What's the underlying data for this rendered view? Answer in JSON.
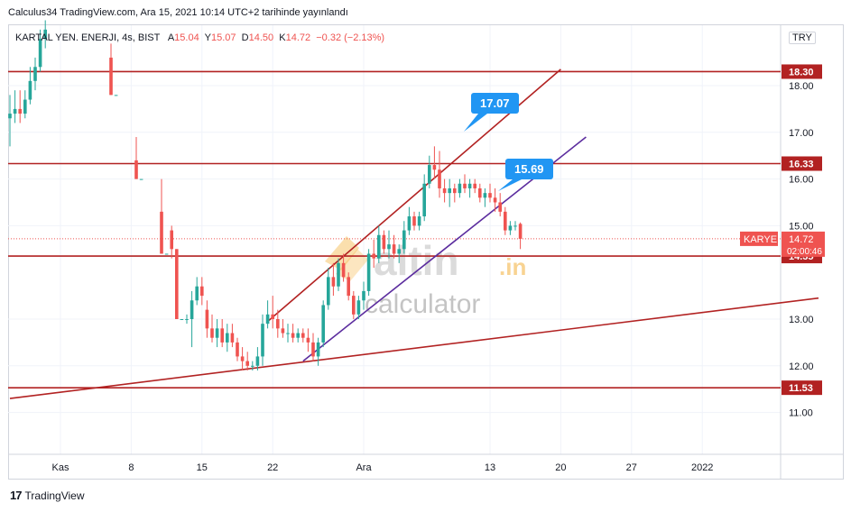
{
  "header": {
    "credit": "Calculus34 TradingView.com, Ara 15, 2021 10:14 UTC+2 tarihinde yayınlandı"
  },
  "legend": {
    "symbol": "KARTAL YEN. ENERJI, 4s, BIST",
    "open_k": "A",
    "open": "15.04",
    "high_k": "Y",
    "high": "15.07",
    "low_k": "D",
    "low": "14.50",
    "close_k": "K",
    "close": "14.72",
    "change": "−0.32 (−2.13%)"
  },
  "currency": "TRY",
  "watermark": {
    "brand_main": "altin",
    "brand_suffix": ".in",
    "brand_sub": "calculator"
  },
  "footer": {
    "logo": "17",
    "brand": "TradingView"
  },
  "callouts": {
    "upper": "17.07",
    "lower": "15.69"
  },
  "price_label": {
    "ticker": "KARYE",
    "price": "14.72",
    "countdown": "02:00:46"
  },
  "colors": {
    "up": "#26a69a",
    "down": "#ef5350",
    "level_line": "#b22222",
    "mid_channel": "#5b2c9e",
    "callout": "#2196f3"
  },
  "chart_data": {
    "type": "candlestick",
    "y_axis": {
      "ticks": [
        11.0,
        12.0,
        13.0,
        15.0,
        16.0,
        17.0,
        18.0
      ],
      "range": [
        10.1,
        19.2
      ]
    },
    "x_axis": {
      "ticks": [
        "Kas",
        "8",
        "15",
        "22",
        "Ara",
        "13",
        "20",
        "27",
        "2022"
      ]
    },
    "horizontal_levels": [
      18.3,
      16.33,
      14.35,
      11.53
    ],
    "candles": [
      {
        "t": 0,
        "o": 17.3,
        "h": 17.8,
        "l": 16.7,
        "c": 17.4
      },
      {
        "t": 1,
        "o": 17.4,
        "h": 17.9,
        "l": 17.2,
        "c": 17.5
      },
      {
        "t": 2,
        "o": 17.5,
        "h": 17.9,
        "l": 17.2,
        "c": 17.4
      },
      {
        "t": 3,
        "o": 17.4,
        "h": 17.9,
        "l": 17.3,
        "c": 17.7
      },
      {
        "t": 4,
        "o": 17.7,
        "h": 18.4,
        "l": 17.6,
        "c": 18.1
      },
      {
        "t": 5,
        "o": 18.1,
        "h": 18.6,
        "l": 17.9,
        "c": 18.4
      },
      {
        "t": 6,
        "o": 18.4,
        "h": 19.2,
        "l": 18.3,
        "c": 19.0
      },
      {
        "t": 7,
        "o": 19.0,
        "h": 19.4,
        "l": 18.8,
        "c": 19.2
      },
      {
        "t": 20,
        "o": 18.6,
        "h": 18.9,
        "l": 17.8,
        "c": 17.8
      },
      {
        "t": 21,
        "o": 17.8,
        "h": 17.8,
        "l": 17.8,
        "c": 17.8
      },
      {
        "t": 25,
        "o": 16.4,
        "h": 16.9,
        "l": 16.0,
        "c": 16.0
      },
      {
        "t": 26,
        "o": 16.0,
        "h": 16.0,
        "l": 16.0,
        "c": 16.0
      },
      {
        "t": 30,
        "o": 15.3,
        "h": 16.0,
        "l": 14.4,
        "c": 14.4
      },
      {
        "t": 31,
        "o": 14.4,
        "h": 14.4,
        "l": 14.4,
        "c": 14.4
      },
      {
        "t": 32,
        "o": 14.9,
        "h": 15.0,
        "l": 14.3,
        "c": 14.5
      },
      {
        "t": 33,
        "o": 14.5,
        "h": 14.5,
        "l": 13.0,
        "c": 13.0
      },
      {
        "t": 34,
        "o": 13.0,
        "h": 13.0,
        "l": 13.0,
        "c": 13.0
      },
      {
        "t": 35,
        "o": 13.0,
        "h": 13.1,
        "l": 12.9,
        "c": 13.0
      },
      {
        "t": 36,
        "o": 13.0,
        "h": 13.6,
        "l": 12.4,
        "c": 13.4
      },
      {
        "t": 37,
        "o": 13.4,
        "h": 13.9,
        "l": 13.3,
        "c": 13.7
      },
      {
        "t": 38,
        "o": 13.7,
        "h": 13.9,
        "l": 13.3,
        "c": 13.5
      },
      {
        "t": 39,
        "o": 13.2,
        "h": 13.4,
        "l": 12.6,
        "c": 12.8
      },
      {
        "t": 40,
        "o": 12.8,
        "h": 13.1,
        "l": 12.5,
        "c": 12.6
      },
      {
        "t": 41,
        "o": 12.6,
        "h": 13.0,
        "l": 12.4,
        "c": 12.8
      },
      {
        "t": 42,
        "o": 12.8,
        "h": 13.0,
        "l": 12.4,
        "c": 12.5
      },
      {
        "t": 43,
        "o": 12.5,
        "h": 12.9,
        "l": 12.3,
        "c": 12.7
      },
      {
        "t": 44,
        "o": 12.7,
        "h": 12.9,
        "l": 12.4,
        "c": 12.5
      },
      {
        "t": 45,
        "o": 12.5,
        "h": 12.6,
        "l": 12.1,
        "c": 12.2
      },
      {
        "t": 46,
        "o": 12.2,
        "h": 12.4,
        "l": 11.9,
        "c": 12.1
      },
      {
        "t": 47,
        "o": 12.1,
        "h": 12.3,
        "l": 11.9,
        "c": 12.0
      },
      {
        "t": 48,
        "o": 12.0,
        "h": 12.1,
        "l": 11.9,
        "c": 12.0
      },
      {
        "t": 49,
        "o": 12.0,
        "h": 12.4,
        "l": 11.9,
        "c": 12.2
      },
      {
        "t": 50,
        "o": 12.2,
        "h": 13.1,
        "l": 12.0,
        "c": 12.9
      },
      {
        "t": 51,
        "o": 12.9,
        "h": 13.4,
        "l": 12.8,
        "c": 13.1
      },
      {
        "t": 52,
        "o": 13.1,
        "h": 13.5,
        "l": 12.8,
        "c": 13.0
      },
      {
        "t": 53,
        "o": 13.0,
        "h": 13.2,
        "l": 12.6,
        "c": 12.8
      },
      {
        "t": 54,
        "o": 12.8,
        "h": 13.0,
        "l": 12.6,
        "c": 12.7
      },
      {
        "t": 55,
        "o": 12.7,
        "h": 12.9,
        "l": 12.5,
        "c": 12.7
      },
      {
        "t": 56,
        "o": 12.7,
        "h": 12.9,
        "l": 12.5,
        "c": 12.6
      },
      {
        "t": 57,
        "o": 12.6,
        "h": 12.8,
        "l": 12.5,
        "c": 12.7
      },
      {
        "t": 58,
        "o": 12.7,
        "h": 12.8,
        "l": 12.5,
        "c": 12.6
      },
      {
        "t": 59,
        "o": 12.6,
        "h": 12.8,
        "l": 12.3,
        "c": 12.5
      },
      {
        "t": 60,
        "o": 12.5,
        "h": 12.7,
        "l": 12.1,
        "c": 12.2
      },
      {
        "t": 61,
        "o": 12.2,
        "h": 12.6,
        "l": 12.0,
        "c": 12.5
      },
      {
        "t": 62,
        "o": 12.5,
        "h": 13.4,
        "l": 12.4,
        "c": 13.3
      },
      {
        "t": 63,
        "o": 13.3,
        "h": 14.1,
        "l": 13.2,
        "c": 13.9
      },
      {
        "t": 64,
        "o": 13.9,
        "h": 14.2,
        "l": 13.5,
        "c": 13.7
      },
      {
        "t": 65,
        "o": 13.7,
        "h": 14.3,
        "l": 13.6,
        "c": 14.2
      },
      {
        "t": 66,
        "o": 14.2,
        "h": 14.4,
        "l": 13.8,
        "c": 13.9
      },
      {
        "t": 67,
        "o": 13.9,
        "h": 14.0,
        "l": 13.4,
        "c": 13.5
      },
      {
        "t": 68,
        "o": 13.5,
        "h": 13.6,
        "l": 13.0,
        "c": 13.1
      },
      {
        "t": 69,
        "o": 13.1,
        "h": 13.5,
        "l": 13.0,
        "c": 13.4
      },
      {
        "t": 70,
        "o": 13.4,
        "h": 13.8,
        "l": 13.2,
        "c": 13.6
      },
      {
        "t": 71,
        "o": 13.6,
        "h": 14.5,
        "l": 13.5,
        "c": 14.4
      },
      {
        "t": 72,
        "o": 14.4,
        "h": 14.7,
        "l": 14.1,
        "c": 14.3
      },
      {
        "t": 73,
        "o": 14.3,
        "h": 15.0,
        "l": 14.2,
        "c": 14.8
      },
      {
        "t": 74,
        "o": 14.8,
        "h": 14.9,
        "l": 14.4,
        "c": 14.5
      },
      {
        "t": 75,
        "o": 14.5,
        "h": 14.9,
        "l": 14.3,
        "c": 14.6
      },
      {
        "t": 76,
        "o": 14.6,
        "h": 14.8,
        "l": 14.3,
        "c": 14.4
      },
      {
        "t": 77,
        "o": 14.4,
        "h": 14.6,
        "l": 14.2,
        "c": 14.5
      },
      {
        "t": 78,
        "o": 14.5,
        "h": 15.1,
        "l": 14.4,
        "c": 14.9
      },
      {
        "t": 79,
        "o": 14.9,
        "h": 15.4,
        "l": 14.8,
        "c": 15.2
      },
      {
        "t": 80,
        "o": 15.2,
        "h": 15.3,
        "l": 14.9,
        "c": 15.0
      },
      {
        "t": 81,
        "o": 15.0,
        "h": 15.3,
        "l": 14.9,
        "c": 15.2
      },
      {
        "t": 82,
        "o": 15.2,
        "h": 16.1,
        "l": 15.1,
        "c": 15.9
      },
      {
        "t": 83,
        "o": 15.9,
        "h": 16.5,
        "l": 15.8,
        "c": 16.3
      },
      {
        "t": 84,
        "o": 16.3,
        "h": 16.7,
        "l": 16.0,
        "c": 16.2
      },
      {
        "t": 85,
        "o": 16.2,
        "h": 16.6,
        "l": 15.6,
        "c": 15.8
      },
      {
        "t": 86,
        "o": 15.8,
        "h": 16.0,
        "l": 15.5,
        "c": 15.7
      },
      {
        "t": 87,
        "o": 15.7,
        "h": 16.0,
        "l": 15.4,
        "c": 15.8
      },
      {
        "t": 88,
        "o": 15.8,
        "h": 15.9,
        "l": 15.5,
        "c": 15.7
      },
      {
        "t": 89,
        "o": 15.7,
        "h": 16.0,
        "l": 15.6,
        "c": 15.9
      },
      {
        "t": 90,
        "o": 15.9,
        "h": 16.1,
        "l": 15.7,
        "c": 15.8
      },
      {
        "t": 91,
        "o": 15.8,
        "h": 16.0,
        "l": 15.6,
        "c": 15.9
      },
      {
        "t": 92,
        "o": 15.9,
        "h": 16.0,
        "l": 15.7,
        "c": 15.8
      },
      {
        "t": 93,
        "o": 15.8,
        "h": 15.9,
        "l": 15.5,
        "c": 15.6
      },
      {
        "t": 94,
        "o": 15.6,
        "h": 15.8,
        "l": 15.4,
        "c": 15.7
      },
      {
        "t": 95,
        "o": 15.7,
        "h": 15.9,
        "l": 15.5,
        "c": 15.6
      },
      {
        "t": 96,
        "o": 15.6,
        "h": 15.8,
        "l": 15.3,
        "c": 15.5
      },
      {
        "t": 97,
        "o": 15.5,
        "h": 15.7,
        "l": 15.2,
        "c": 15.3
      },
      {
        "t": 98,
        "o": 15.3,
        "h": 15.4,
        "l": 14.8,
        "c": 14.9
      },
      {
        "t": 99,
        "o": 14.9,
        "h": 15.1,
        "l": 14.8,
        "c": 15.0
      },
      {
        "t": 100,
        "o": 15.0,
        "h": 15.1,
        "l": 14.9,
        "c": 15.0
      },
      {
        "t": 101,
        "o": 15.04,
        "h": 15.07,
        "l": 14.5,
        "c": 14.72
      }
    ],
    "drawings": {
      "upper_channel": {
        "t1": 51,
        "p1": 12.95,
        "t2": 109,
        "p2": 18.35
      },
      "mid_channel": {
        "t1": 58,
        "p1": 12.1,
        "t2": 114,
        "p2": 16.9
      },
      "support_trend": {
        "t1": 0,
        "p1": 11.3,
        "t2": 160,
        "p2": 13.45
      }
    }
  }
}
